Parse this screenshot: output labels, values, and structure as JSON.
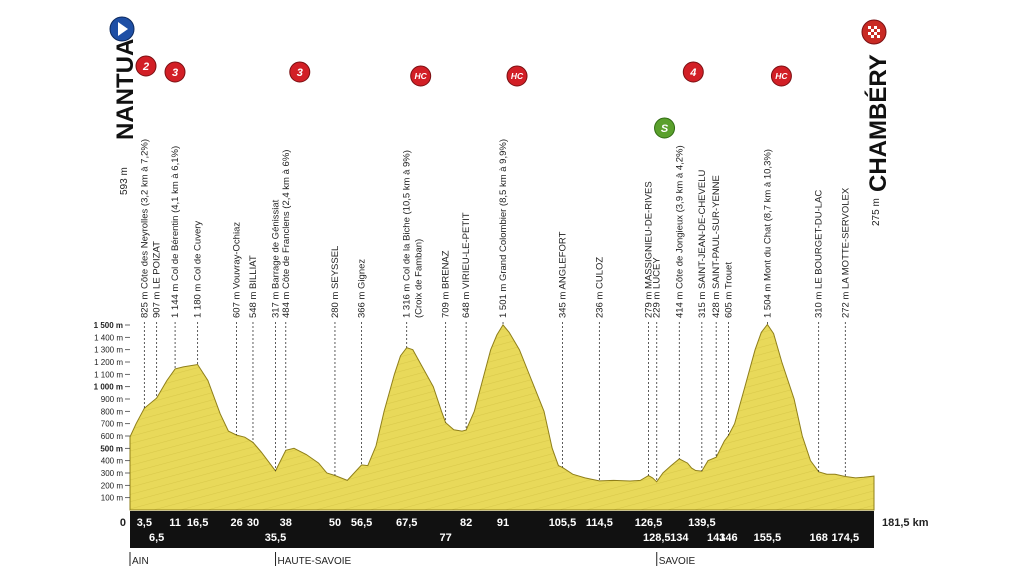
{
  "chart_data": {
    "type": "area",
    "title": "",
    "xlabel": "",
    "ylabel": "",
    "xlim": [
      0,
      181.5
    ],
    "ylim": [
      0,
      1500
    ],
    "y_ticks": [
      {
        "v": 100,
        "label": "100 m"
      },
      {
        "v": 200,
        "label": "200 m"
      },
      {
        "v": 300,
        "label": "300 m"
      },
      {
        "v": 400,
        "label": "400 m"
      },
      {
        "v": 500,
        "label": "500 m"
      },
      {
        "v": 600,
        "label": "600 m"
      },
      {
        "v": 700,
        "label": "700 m"
      },
      {
        "v": 800,
        "label": "800 m"
      },
      {
        "v": 900,
        "label": "900 m"
      },
      {
        "v": 1000,
        "label": "1 000 m"
      },
      {
        "v": 1100,
        "label": "1 100 m"
      },
      {
        "v": 1200,
        "label": "1 200 m"
      },
      {
        "v": 1300,
        "label": "1 300 m"
      },
      {
        "v": 1400,
        "label": "1 400 m"
      },
      {
        "v": 1500,
        "label": "1 500 m"
      }
    ],
    "profile": [
      [
        0,
        593
      ],
      [
        1.5,
        700
      ],
      [
        3.5,
        825
      ],
      [
        6.5,
        907
      ],
      [
        9,
        1050
      ],
      [
        11,
        1144
      ],
      [
        13,
        1160
      ],
      [
        16.5,
        1180
      ],
      [
        19,
        1050
      ],
      [
        22,
        780
      ],
      [
        24,
        640
      ],
      [
        26,
        607
      ],
      [
        28,
        590
      ],
      [
        30,
        548
      ],
      [
        32,
        470
      ],
      [
        35.5,
        317
      ],
      [
        38,
        484
      ],
      [
        40,
        500
      ],
      [
        43,
        450
      ],
      [
        46,
        380
      ],
      [
        48,
        300
      ],
      [
        50,
        280
      ],
      [
        53,
        240
      ],
      [
        56.5,
        366
      ],
      [
        58,
        360
      ],
      [
        60,
        520
      ],
      [
        62,
        800
      ],
      [
        64.5,
        1100
      ],
      [
        66,
        1250
      ],
      [
        67.5,
        1316
      ],
      [
        69,
        1300
      ],
      [
        71,
        1180
      ],
      [
        74,
        1000
      ],
      [
        76,
        800
      ],
      [
        77,
        709
      ],
      [
        79,
        650
      ],
      [
        81,
        640
      ],
      [
        82,
        648
      ],
      [
        84,
        800
      ],
      [
        86,
        1050
      ],
      [
        88,
        1300
      ],
      [
        89.5,
        1420
      ],
      [
        91,
        1501
      ],
      [
        92.5,
        1440
      ],
      [
        95,
        1300
      ],
      [
        98,
        1050
      ],
      [
        101,
        800
      ],
      [
        103,
        500
      ],
      [
        104.5,
        360
      ],
      [
        105.5,
        345
      ],
      [
        108,
        290
      ],
      [
        111,
        260
      ],
      [
        114.5,
        236
      ],
      [
        118,
        240
      ],
      [
        122,
        235
      ],
      [
        124.5,
        240
      ],
      [
        126.5,
        279
      ],
      [
        127.5,
        260
      ],
      [
        128.5,
        229
      ],
      [
        130,
        300
      ],
      [
        132,
        360
      ],
      [
        134,
        414
      ],
      [
        136,
        380
      ],
      [
        137,
        340
      ],
      [
        138,
        320
      ],
      [
        139.5,
        315
      ],
      [
        141,
        400
      ],
      [
        143,
        428
      ],
      [
        145,
        560
      ],
      [
        146,
        605
      ],
      [
        147.5,
        700
      ],
      [
        150,
        1000
      ],
      [
        152.5,
        1300
      ],
      [
        154,
        1440
      ],
      [
        155.5,
        1504
      ],
      [
        157,
        1430
      ],
      [
        159,
        1200
      ],
      [
        162,
        900
      ],
      [
        164,
        600
      ],
      [
        166,
        400
      ],
      [
        168,
        310
      ],
      [
        170,
        290
      ],
      [
        172,
        290
      ],
      [
        174.5,
        272
      ],
      [
        177,
        260
      ],
      [
        179,
        265
      ],
      [
        181.5,
        275
      ]
    ],
    "km_markers": [
      {
        "km": 0,
        "label": "0",
        "row": 0
      },
      {
        "km": 3.5,
        "label": "3,5",
        "row": 0
      },
      {
        "km": 6.5,
        "label": "6,5",
        "row": 1
      },
      {
        "km": 11,
        "label": "11",
        "row": 0
      },
      {
        "km": 16.5,
        "label": "16,5",
        "row": 0
      },
      {
        "km": 26,
        "label": "26",
        "row": 0
      },
      {
        "km": 30,
        "label": "30",
        "row": 0
      },
      {
        "km": 35.5,
        "label": "35,5",
        "row": 1
      },
      {
        "km": 38,
        "label": "38",
        "row": 0
      },
      {
        "km": 50,
        "label": "50",
        "row": 0
      },
      {
        "km": 56.5,
        "label": "56,5",
        "row": 0
      },
      {
        "km": 67.5,
        "label": "67,5",
        "row": 0
      },
      {
        "km": 77,
        "label": "77",
        "row": 1
      },
      {
        "km": 82,
        "label": "82",
        "row": 0
      },
      {
        "km": 91,
        "label": "91",
        "row": 0
      },
      {
        "km": 105.5,
        "label": "105,5",
        "row": 0
      },
      {
        "km": 114.5,
        "label": "114,5",
        "row": 0
      },
      {
        "km": 126.5,
        "label": "126,5",
        "row": 0
      },
      {
        "km": 128.5,
        "label": "128,5",
        "row": 1
      },
      {
        "km": 134,
        "label": "134",
        "row": 1
      },
      {
        "km": 139.5,
        "label": "139,5",
        "row": 0
      },
      {
        "km": 143,
        "label": "143",
        "row": 1
      },
      {
        "km": 146,
        "label": "146",
        "row": 1
      },
      {
        "km": 155.5,
        "label": "155,5",
        "row": 1
      },
      {
        "km": 168,
        "label": "168",
        "row": 1
      },
      {
        "km": 174.5,
        "label": "174,5",
        "row": 1
      },
      {
        "km": 181.5,
        "label": "181,5 km",
        "row": 0
      }
    ],
    "waypoints": [
      {
        "km": 3.5,
        "label": "825 m Côte des Neyrolles (3,2 km à 7,2%)"
      },
      {
        "km": 6.5,
        "label": "907 m LE POIZAT"
      },
      {
        "km": 11,
        "label": "1 144 m Col de Bérentin (4,1 km à 6,1%)"
      },
      {
        "km": 16.5,
        "label": "1 180 m Col de Cuvery"
      },
      {
        "km": 26,
        "label": "607 m Vouvray-Ochiaz"
      },
      {
        "km": 30,
        "label": "548 m BILLIAT"
      },
      {
        "km": 35.5,
        "label": "317 m Barrage de Génissiat"
      },
      {
        "km": 38,
        "label": "484 m Côte de Franclens (2,4 km à 6%)"
      },
      {
        "km": 50,
        "label": "280 m SEYSSEL"
      },
      {
        "km": 56.5,
        "label": "366 m Gignez"
      },
      {
        "km": 67.5,
        "label": "1 316 m Col de la Biche (10,5 km à 9%)"
      },
      {
        "km": 67.5,
        "label": "(Croix de Famban)"
      },
      {
        "km": 77,
        "label": "709 m BRENAZ"
      },
      {
        "km": 82,
        "label": "648 m VIRIEU-LE-PETIT"
      },
      {
        "km": 91,
        "label": "1 501 m Grand Colombier (8,5 km à 9,9%)"
      },
      {
        "km": 105.5,
        "label": "345 m ANGLEFORT"
      },
      {
        "km": 114.5,
        "label": "236 m CULOZ"
      },
      {
        "km": 126.5,
        "label": "279 m MASSIGNIEU-DE-RIVES"
      },
      {
        "km": 128.5,
        "label": "229 m LUCEY"
      },
      {
        "km": 134,
        "label": "414 m Côte de Jongieux (3,9 km à 4,2%)"
      },
      {
        "km": 139.5,
        "label": "315 m SAINT-JEAN-DE-CHEVELU"
      },
      {
        "km": 143,
        "label": "428 m SAINT-PAUL-SUR-YENNE"
      },
      {
        "km": 146,
        "label": "605 m Trouet"
      },
      {
        "km": 155.5,
        "label": "1 504 m Mont du Chat (8,7 km à 10,3%)"
      },
      {
        "km": 168,
        "label": "310 m LE BOURGET-DU-LAC"
      },
      {
        "km": 174.5,
        "label": "272 m LA MOTTE-SERVOLEX"
      }
    ],
    "climbs": [
      {
        "km": 3.5,
        "category": "2"
      },
      {
        "km": 11,
        "category": "3"
      },
      {
        "km": 38,
        "category": "3"
      },
      {
        "km": 67.5,
        "category": "HC"
      },
      {
        "km": 91,
        "category": "HC"
      },
      {
        "km": 134,
        "category": "4"
      },
      {
        "km": 155.5,
        "category": "HC"
      }
    ],
    "sprint": {
      "km": 126.5,
      "label": "S"
    },
    "start": {
      "city": "NANTUA",
      "altitude": "593 m"
    },
    "finish": {
      "city": "CHAMBÉRY",
      "altitude": "275 m"
    },
    "regions": [
      {
        "km": 0,
        "label": "AIN"
      },
      {
        "km": 35.5,
        "label": "HAUTE-SAVOIE"
      },
      {
        "km": 128.5,
        "label": "SAVOIE"
      }
    ],
    "colors": {
      "terrain": "#e8d95a",
      "terrain_dark": "#c9b93a",
      "bar": "#111111",
      "badge": "#d21f26",
      "sprint": "#5aa02c",
      "start_marker": "#1e4fa5"
    }
  }
}
